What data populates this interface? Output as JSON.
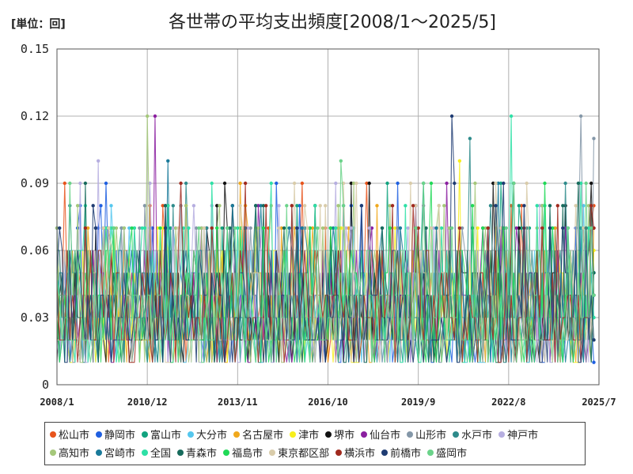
{
  "unit_label": "[単位：回]",
  "chart_data": {
    "type": "line",
    "title": "各世帯の平均支出頻度[2008/1～2025/5]",
    "ylim": [
      0,
      0.15
    ],
    "y_ticks": [
      "0",
      "0.03",
      "0.06",
      "0.09",
      "0.12",
      "0.15"
    ],
    "x_ticks": [
      "2008/1",
      "2010/12",
      "2013/11",
      "2016/10",
      "2019/9",
      "2022/8",
      "2025/7"
    ],
    "x_range": [
      "2008/1",
      "2025/7"
    ],
    "grid": true,
    "legend_position": "bottom",
    "value_levels": [
      0.01,
      0.02,
      0.03,
      0.04,
      0.05,
      0.06,
      0.07,
      0.08,
      0.09,
      0.1,
      0.11,
      0.12
    ],
    "series": [
      {
        "name": "松山市",
        "color": "#e8541c",
        "last": 0.08,
        "peak": {
          "x": "2011/6",
          "y": 0.08
        }
      },
      {
        "name": "静岡市",
        "color": "#1f5fe0",
        "last": 0.01,
        "peak": {
          "x": "2009/6",
          "y": 0.08
        }
      },
      {
        "name": "富山市",
        "color": "#11a37f",
        "last": 0.05,
        "peak": {
          "x": "2018/9",
          "y": 0.09
        }
      },
      {
        "name": "大分市",
        "color": "#55c7ee",
        "last": 0.03,
        "peak": {
          "x": "2009/10",
          "y": 0.08
        }
      },
      {
        "name": "名古屋市",
        "color": "#f0a81c",
        "last": 0.07,
        "peak": {
          "x": "2012/3",
          "y": 0.08
        }
      },
      {
        "name": "津市",
        "color": "#f7ef1c",
        "last": 0.06,
        "peak": {
          "x": "2021/1",
          "y": 0.1
        }
      },
      {
        "name": "堺市",
        "color": "#111111",
        "last": 0.04,
        "peak": {
          "x": "2017/7",
          "y": 0.09
        }
      },
      {
        "name": "仙台市",
        "color": "#8b1fa0",
        "last": 0.07,
        "peak": {
          "x": "2011/3",
          "y": 0.12
        }
      },
      {
        "name": "山形市",
        "color": "#8497a8",
        "last": 0.11,
        "peak": {
          "x": "2024/12",
          "y": 0.12
        }
      },
      {
        "name": "水戸市",
        "color": "#2e8b8b",
        "last": 0.05,
        "peak": {
          "x": "2021/5",
          "y": 0.11
        }
      },
      {
        "name": "神戸市",
        "color": "#b6aee0",
        "last": 0.03,
        "peak": {
          "x": "2009/5",
          "y": 0.1
        }
      },
      {
        "name": "高知市",
        "color": "#a5c87a",
        "last": 0.03,
        "peak": {
          "x": "2010/12",
          "y": 0.12
        }
      },
      {
        "name": "宮崎市",
        "color": "#1a7a9a",
        "last": 0.04,
        "peak": {
          "x": "2011/8",
          "y": 0.1
        }
      },
      {
        "name": "全国",
        "color": "#2ee0a6",
        "last": 0.03,
        "peak": {
          "x": "2022/9",
          "y": 0.12
        }
      },
      {
        "name": "青森市",
        "color": "#176b5c",
        "last": 0.05,
        "peak": {
          "x": "2024/11",
          "y": 0.09
        }
      },
      {
        "name": "福島市",
        "color": "#20d957",
        "last": 0.02,
        "peak": {
          "x": "2021/6",
          "y": 0.08
        }
      },
      {
        "name": "東京都区部",
        "color": "#d9ccaa",
        "last": 0.02,
        "peak": {
          "x": "2015/9",
          "y": 0.09
        }
      },
      {
        "name": "横浜市",
        "color": "#a02a1e",
        "last": 0.07,
        "peak": {
          "x": "2025/4",
          "y": 0.08
        }
      },
      {
        "name": "前橋市",
        "color": "#1f3c73",
        "last": 0.02,
        "peak": {
          "x": "2020/10",
          "y": 0.12
        }
      },
      {
        "name": "盛岡市",
        "color": "#6bd38a",
        "last": 0.04,
        "peak": {
          "x": "2017/3",
          "y": 0.1
        }
      }
    ]
  }
}
